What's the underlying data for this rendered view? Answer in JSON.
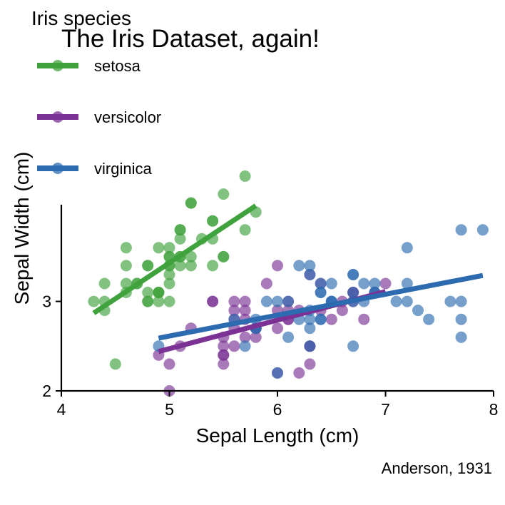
{
  "chart_data": {
    "type": "scatter",
    "title": "The Iris Dataset, again!",
    "xlabel": "Sepal Length (cm)",
    "ylabel": "Sepal Width (cm)",
    "caption": "Anderson, 1931",
    "legend_title": "Iris species",
    "legend_position": "top-left",
    "xlim": [
      4,
      8
    ],
    "ylim": [
      2,
      4.4
    ],
    "xticks": [
      4,
      5,
      6,
      7,
      8
    ],
    "yticks": [
      2,
      3
    ],
    "grid": false,
    "series": [
      {
        "name": "setosa",
        "color": "#3fa23c",
        "trend": {
          "x": [
            4.3,
            5.8
          ],
          "y": [
            2.87,
            4.07
          ]
        },
        "points": [
          [
            5.7,
            4.4
          ],
          [
            5.5,
            4.2
          ],
          [
            5.2,
            4.1
          ],
          [
            5.8,
            4.0
          ],
          [
            5.4,
            3.9
          ],
          [
            5.4,
            3.9
          ],
          [
            5.7,
            3.8
          ],
          [
            5.1,
            3.8
          ],
          [
            5.1,
            3.8
          ],
          [
            5.3,
            3.7
          ],
          [
            5.4,
            3.7
          ],
          [
            4.6,
            3.6
          ],
          [
            4.9,
            3.6
          ],
          [
            5.0,
            3.6
          ],
          [
            5.1,
            3.5
          ],
          [
            5.0,
            3.5
          ],
          [
            5.2,
            3.5
          ],
          [
            5.1,
            3.5
          ],
          [
            5.5,
            3.5
          ],
          [
            5.0,
            3.5
          ],
          [
            4.6,
            3.4
          ],
          [
            4.8,
            3.4
          ],
          [
            5.0,
            3.4
          ],
          [
            5.4,
            3.4
          ],
          [
            5.2,
            3.4
          ],
          [
            5.0,
            3.4
          ],
          [
            4.8,
            3.4
          ],
          [
            5.1,
            3.4
          ],
          [
            4.7,
            3.2
          ],
          [
            4.4,
            3.2
          ],
          [
            4.6,
            3.2
          ],
          [
            5.0,
            3.3
          ],
          [
            5.0,
            3.2
          ],
          [
            4.8,
            3.1
          ],
          [
            4.6,
            3.1
          ],
          [
            4.9,
            3.1
          ],
          [
            4.9,
            3.1
          ],
          [
            4.9,
            3.1
          ],
          [
            4.7,
            3.2
          ],
          [
            4.3,
            3.0
          ],
          [
            4.8,
            3.0
          ],
          [
            4.8,
            3.0
          ],
          [
            4.4,
            3.0
          ],
          [
            4.9,
            3.0
          ],
          [
            5.0,
            3.0
          ],
          [
            4.5,
            2.3
          ],
          [
            5.2,
            4.1
          ],
          [
            5.1,
            3.7
          ],
          [
            4.4,
            2.9
          ],
          [
            5.5,
            3.5
          ]
        ]
      },
      {
        "name": "versicolor",
        "color": "#7b3294",
        "trend": {
          "x": [
            4.9,
            7.0
          ],
          "y": [
            2.44,
            3.11
          ]
        },
        "points": [
          [
            6.0,
            3.4
          ],
          [
            5.9,
            3.2
          ],
          [
            6.3,
            3.3
          ],
          [
            7.0,
            3.2
          ],
          [
            6.4,
            3.2
          ],
          [
            6.9,
            3.1
          ],
          [
            6.7,
            3.1
          ],
          [
            6.7,
            3.1
          ],
          [
            5.4,
            3.0
          ],
          [
            5.6,
            3.0
          ],
          [
            5.7,
            3.0
          ],
          [
            6.1,
            3.0
          ],
          [
            6.7,
            3.0
          ],
          [
            5.6,
            2.9
          ],
          [
            5.7,
            2.9
          ],
          [
            6.0,
            2.9
          ],
          [
            6.1,
            2.9
          ],
          [
            6.2,
            2.9
          ],
          [
            6.6,
            2.9
          ],
          [
            6.4,
            2.9
          ],
          [
            5.6,
            2.8
          ],
          [
            5.7,
            2.8
          ],
          [
            6.1,
            2.8
          ],
          [
            6.5,
            2.8
          ],
          [
            6.8,
            2.8
          ],
          [
            5.8,
            2.7
          ],
          [
            5.6,
            2.7
          ],
          [
            5.8,
            2.7
          ],
          [
            6.0,
            2.7
          ],
          [
            5.2,
            2.7
          ],
          [
            5.5,
            2.6
          ],
          [
            5.8,
            2.6
          ],
          [
            5.5,
            2.5
          ],
          [
            5.6,
            2.5
          ],
          [
            5.1,
            2.5
          ],
          [
            5.5,
            2.4
          ],
          [
            5.5,
            2.4
          ],
          [
            4.9,
            2.4
          ],
          [
            6.3,
            2.5
          ],
          [
            5.7,
            2.6
          ],
          [
            6.2,
            2.2
          ],
          [
            6.0,
            2.2
          ],
          [
            5.0,
            2.0
          ],
          [
            6.3,
            2.3
          ],
          [
            5.0,
            2.3
          ],
          [
            5.5,
            2.3
          ],
          [
            6.1,
            2.8
          ],
          [
            6.3,
            2.5
          ],
          [
            5.4,
            3.0
          ],
          [
            6.6,
            3.0
          ]
        ]
      },
      {
        "name": "virginica",
        "color": "#2c6bb0",
        "trend": {
          "x": [
            4.9,
            7.9
          ],
          "y": [
            2.59,
            3.29
          ]
        },
        "points": [
          [
            7.7,
            3.8
          ],
          [
            7.9,
            3.8
          ],
          [
            7.2,
            3.6
          ],
          [
            6.3,
            3.4
          ],
          [
            6.2,
            3.4
          ],
          [
            6.3,
            3.3
          ],
          [
            6.7,
            3.3
          ],
          [
            6.7,
            3.3
          ],
          [
            6.4,
            3.2
          ],
          [
            6.5,
            3.2
          ],
          [
            6.9,
            3.2
          ],
          [
            6.8,
            3.2
          ],
          [
            7.2,
            3.2
          ],
          [
            6.4,
            3.1
          ],
          [
            6.7,
            3.1
          ],
          [
            6.9,
            3.1
          ],
          [
            6.4,
            3.1
          ],
          [
            6.5,
            3.0
          ],
          [
            7.1,
            3.0
          ],
          [
            7.6,
            3.0
          ],
          [
            6.5,
            3.0
          ],
          [
            5.9,
            3.0
          ],
          [
            6.1,
            3.0
          ],
          [
            7.2,
            3.0
          ],
          [
            6.0,
            3.0
          ],
          [
            6.7,
            3.0
          ],
          [
            7.7,
            3.0
          ],
          [
            7.3,
            2.9
          ],
          [
            6.3,
            2.9
          ],
          [
            6.2,
            2.8
          ],
          [
            5.6,
            2.8
          ],
          [
            6.4,
            2.8
          ],
          [
            6.4,
            2.8
          ],
          [
            7.4,
            2.8
          ],
          [
            6.3,
            2.8
          ],
          [
            6.3,
            2.7
          ],
          [
            7.7,
            2.8
          ],
          [
            5.8,
            2.7
          ],
          [
            5.8,
            2.7
          ],
          [
            6.3,
            2.5
          ],
          [
            6.0,
            2.2
          ],
          [
            5.7,
            2.5
          ],
          [
            4.9,
            2.5
          ],
          [
            6.7,
            2.5
          ],
          [
            6.1,
            2.6
          ],
          [
            7.7,
            2.6
          ],
          [
            5.8,
            2.8
          ],
          [
            6.9,
            3.1
          ],
          [
            6.5,
            3.0
          ],
          [
            6.8,
            3.0
          ]
        ]
      }
    ]
  }
}
